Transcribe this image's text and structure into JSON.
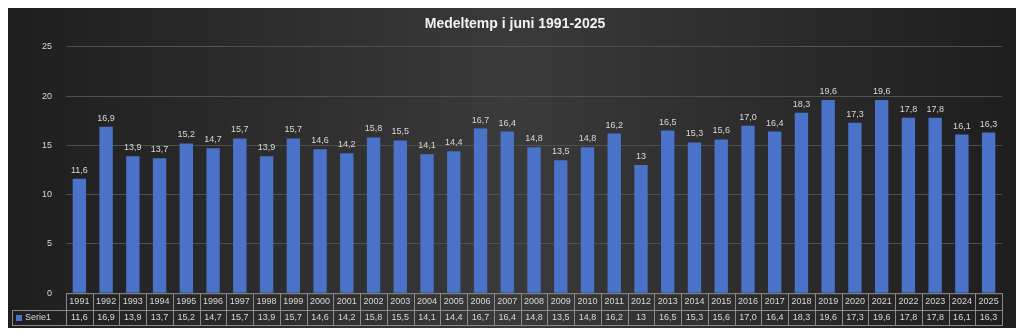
{
  "chart_data": {
    "type": "bar",
    "title": "Medeltemp i juni 1991-2025",
    "categories": [
      "1991",
      "1992",
      "1993",
      "1994",
      "1995",
      "1996",
      "1997",
      "1998",
      "1999",
      "2000",
      "2001",
      "2002",
      "2003",
      "2004",
      "2005",
      "2006",
      "2007",
      "2008",
      "2009",
      "2010",
      "2011",
      "2012",
      "2013",
      "2014",
      "2015",
      "2016",
      "2017",
      "2018",
      "2019",
      "2020",
      "2021",
      "2022",
      "2023",
      "2024",
      "2025"
    ],
    "series": [
      {
        "name": "Serie1",
        "color": "#4a72c8",
        "values": [
          11.6,
          16.9,
          13.9,
          13.7,
          15.2,
          14.7,
          15.7,
          13.9,
          15.7,
          14.6,
          14.2,
          15.8,
          15.5,
          14.1,
          14.4,
          16.7,
          16.4,
          14.8,
          13.5,
          14.8,
          16.2,
          13,
          16.5,
          15.3,
          15.6,
          17.0,
          16.4,
          18.3,
          19.6,
          17.3,
          19.6,
          17.8,
          17.8,
          16.1,
          16.3
        ],
        "value_labels": [
          "11,6",
          "16,9",
          "13,9",
          "13,7",
          "15,2",
          "14,7",
          "15,7",
          "13,9",
          "15,7",
          "14,6",
          "14,2",
          "15,8",
          "15,5",
          "14,1",
          "14,4",
          "16,7",
          "16,4",
          "14,8",
          "13,5",
          "14,8",
          "16,2",
          "13",
          "16,5",
          "15,3",
          "15,6",
          "17,0",
          "16,4",
          "18,3",
          "19,6",
          "17,3",
          "19,6",
          "17,8",
          "17,8",
          "16,1",
          "16,3"
        ]
      }
    ],
    "ylim": [
      0,
      25
    ],
    "yticks": [
      0,
      5,
      10,
      15,
      20,
      25
    ],
    "grid": "y",
    "legend": "bottom"
  }
}
